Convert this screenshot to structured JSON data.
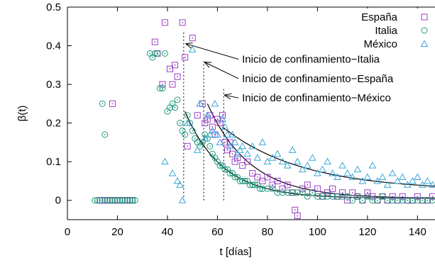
{
  "chart_data": {
    "type": "scatter",
    "xlabel": "t [días]",
    "ylabel": "β(t)",
    "xlim": [
      0,
      147
    ],
    "ylim": [
      -0.05,
      0.5
    ],
    "xticks": [
      "0",
      "20",
      "40",
      "60",
      "80",
      "100",
      "120",
      "140"
    ],
    "yticks": [
      "0",
      "0.1",
      "0.2",
      "0.3",
      "0.4",
      "0.5"
    ],
    "legend_position": "top-right",
    "series": [
      {
        "name": "España",
        "marker": "square",
        "color": "#9a3fc4",
        "x": [
          13,
          14,
          15,
          16,
          17,
          18,
          19,
          20,
          21,
          22,
          23,
          24,
          25,
          26,
          18,
          35,
          36,
          38,
          39,
          41,
          42,
          43,
          44,
          46,
          47,
          48,
          50,
          52,
          54,
          55,
          56,
          57,
          58,
          59,
          60,
          61,
          62,
          63,
          64,
          65,
          66,
          67,
          68,
          70,
          72,
          74,
          76,
          78,
          80,
          82,
          84,
          86,
          88,
          90,
          91,
          92,
          94,
          96,
          98,
          100,
          102,
          104,
          106,
          108,
          110,
          112,
          114,
          116,
          118,
          120,
          122,
          124,
          126,
          128,
          130,
          132,
          134,
          136,
          138,
          140,
          142,
          144,
          146
        ],
        "y": [
          0,
          0,
          0,
          0,
          0,
          0,
          0,
          0,
          0,
          0,
          0,
          0,
          0,
          0,
          0.25,
          0.41,
          0.38,
          0.3,
          0.46,
          0.34,
          0.3,
          0.35,
          0.32,
          0.46,
          0.37,
          0.14,
          0.42,
          0.22,
          0.25,
          0.2,
          0.21,
          0.22,
          0.19,
          0.17,
          0.21,
          0.2,
          0.22,
          0.15,
          0.13,
          0.15,
          0.12,
          0.1,
          0.11,
          0.09,
          0.1,
          0.07,
          0.06,
          0.05,
          0.06,
          0.04,
          0.05,
          0.03,
          0.04,
          0.02,
          -0.025,
          -0.04,
          0.03,
          0.04,
          0.02,
          0.03,
          0.01,
          0.02,
          0.03,
          0.01,
          0.02,
          0.0,
          0.02,
          0.01,
          0.0,
          0.02,
          0.01,
          0.0,
          0.01,
          0.0,
          0.01,
          0.0,
          0.01,
          0.0,
          0.0,
          0.01,
          0.0,
          0.0,
          0.01
        ]
      },
      {
        "name": "Italia",
        "marker": "circle",
        "color": "#229a7e",
        "x": [
          11,
          12,
          13,
          15,
          16,
          17,
          18,
          19,
          20,
          21,
          22,
          23,
          24,
          25,
          26,
          27,
          14,
          15,
          33,
          34,
          35,
          36,
          37,
          38,
          39,
          40,
          41,
          42,
          43,
          44,
          45,
          46,
          47,
          48,
          49,
          50,
          51,
          52,
          53,
          54,
          55,
          56,
          57,
          58,
          59,
          60,
          61,
          62,
          63,
          64,
          65,
          66,
          67,
          68,
          69,
          70,
          71,
          72,
          73,
          74,
          75,
          76,
          77,
          78,
          80,
          82,
          84,
          86,
          88,
          90,
          92,
          94,
          96,
          98,
          100,
          102,
          104,
          106,
          108,
          110,
          112,
          114,
          116,
          118,
          120,
          122,
          124,
          126,
          128,
          130,
          132,
          134,
          136,
          138,
          140,
          142,
          144,
          146
        ],
        "y": [
          0,
          0,
          0,
          0,
          0,
          0,
          0,
          0,
          0,
          0,
          0,
          0,
          0,
          0,
          0,
          0,
          0.25,
          0.17,
          0.38,
          0.37,
          0.38,
          0.38,
          0.29,
          0.29,
          0.38,
          0.23,
          0.24,
          0.25,
          0.24,
          0.26,
          0.2,
          0.18,
          0.17,
          0.22,
          0.2,
          0.18,
          0.16,
          0.15,
          0.14,
          0.15,
          0.17,
          0.16,
          0.14,
          0.12,
          0.11,
          0.1,
          0.09,
          0.09,
          0.08,
          0.08,
          0.07,
          0.07,
          0.06,
          0.06,
          0.05,
          0.05,
          0.05,
          0.05,
          0.04,
          0.04,
          0.04,
          0.04,
          0.03,
          0.03,
          0.03,
          0.03,
          0.02,
          0.02,
          0.02,
          0.02,
          0.02,
          0.02,
          0.01,
          0.02,
          0.01,
          0.01,
          0.01,
          0.01,
          0.01,
          0.01,
          0.01,
          0.0,
          0.01,
          0.0,
          0.01,
          0.0,
          0.0,
          0.01,
          0.0,
          0.0,
          0.0,
          0.0,
          0.0,
          0.0,
          0.0,
          0.0,
          0.0,
          0.0
        ]
      },
      {
        "name": "México",
        "marker": "triangle",
        "color": "#3aa6d8",
        "x": [
          39,
          42,
          44,
          45,
          46,
          48,
          50,
          52,
          53,
          55,
          56,
          57,
          58,
          59,
          60,
          61,
          62,
          63,
          64,
          65,
          66,
          67,
          68,
          69,
          70,
          72,
          74,
          76,
          78,
          80,
          82,
          84,
          86,
          88,
          90,
          92,
          94,
          96,
          98,
          100,
          102,
          104,
          106,
          108,
          110,
          112,
          114,
          116,
          118,
          120,
          122,
          124,
          126,
          128,
          130,
          132,
          134,
          136,
          138,
          140,
          142,
          144,
          146
        ],
        "y": [
          0.1,
          0.07,
          0.05,
          0.04,
          0.0,
          0.2,
          0.39,
          0.13,
          0.25,
          0.16,
          0.22,
          0.17,
          0.18,
          0.25,
          0.17,
          0.15,
          0.21,
          0.19,
          0.17,
          0.14,
          0.17,
          0.15,
          0.12,
          0.13,
          0.14,
          0.12,
          0.14,
          0.11,
          0.15,
          0.1,
          0.11,
          0.12,
          0.1,
          0.09,
          0.13,
          0.1,
          0.08,
          0.09,
          0.11,
          0.07,
          0.08,
          0.1,
          0.07,
          0.06,
          0.09,
          0.07,
          0.06,
          0.08,
          0.05,
          0.06,
          0.09,
          0.05,
          0.06,
          0.04,
          0.07,
          0.05,
          0.06,
          0.04,
          0.05,
          0.06,
          0.04,
          0.05,
          0.04
        ]
      }
    ],
    "fits": [
      {
        "x0": 47,
        "y0": 0.23,
        "tau": 15,
        "c": 0.005,
        "x1": 147
      },
      {
        "x0": 56,
        "y0": 0.25,
        "tau": 17,
        "c": 0.005,
        "x1": 147
      },
      {
        "x0": 62,
        "y0": 0.19,
        "tau": 32,
        "c": 0.025,
        "x1": 147
      }
    ],
    "vlines": [
      {
        "x": 46.5,
        "y0": 0,
        "y1": 0.44
      },
      {
        "x": 54.5,
        "y0": 0,
        "y1": 0.36
      },
      {
        "x": 62.5,
        "y0": 0,
        "y1": 0.29
      }
    ],
    "annotations": [
      {
        "text": "Inicio de confinamiento−Italia",
        "x": 69,
        "y": 0.365,
        "arrow_to": [
          47.5,
          0.405
        ]
      },
      {
        "text": "Inicio de confinamiento−España",
        "x": 69,
        "y": 0.315,
        "arrow_to": [
          55,
          0.357
        ]
      },
      {
        "text": "Inicio de confinamiento−México",
        "x": 69,
        "y": 0.265,
        "arrow_to": [
          63,
          0.272
        ]
      }
    ]
  }
}
